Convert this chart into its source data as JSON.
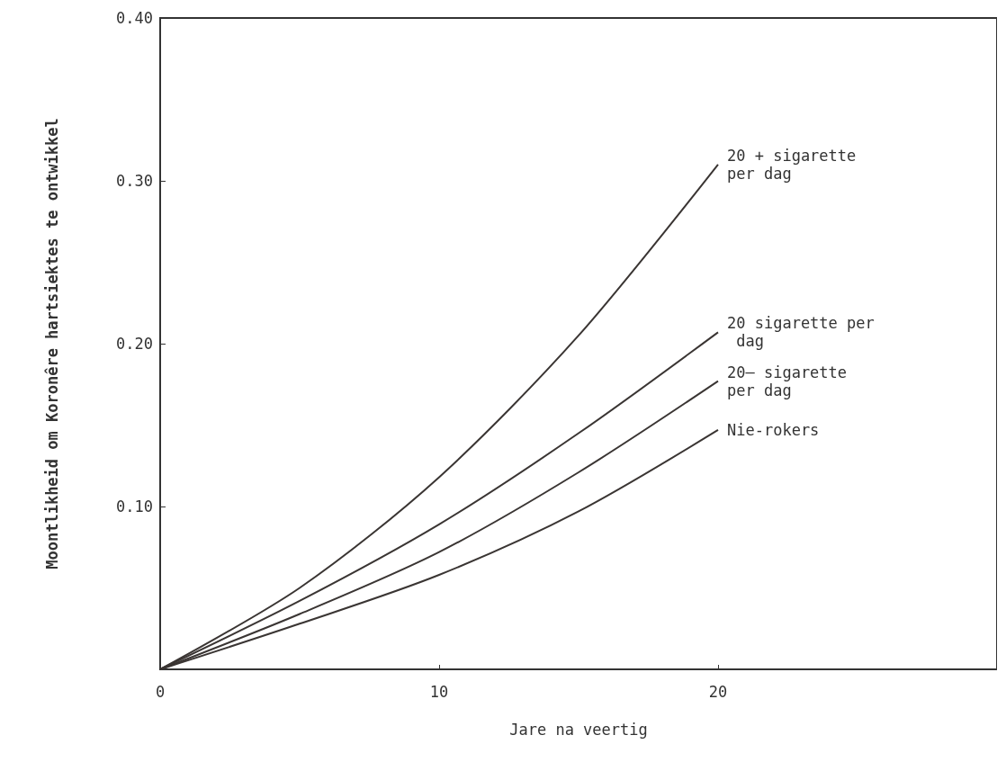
{
  "chart_data": {
    "type": "line",
    "xlabel": "Jare na veertig",
    "ylabel": "Moontlikheid om Koronêre hartsiektes te ontwikkel",
    "x": [
      0,
      5,
      10,
      15,
      20
    ],
    "series": [
      {
        "name": "20 + sigarette per dag",
        "color": "#3a3533",
        "values": [
          0,
          0.05,
          0.118,
          0.205,
          0.31
        ]
      },
      {
        "name": "20 sigarette per dag",
        "color": "#3a3533",
        "values": [
          0,
          0.042,
          0.089,
          0.145,
          0.207
        ]
      },
      {
        "name": "20– sigarette per dag",
        "color": "#3a3533",
        "values": [
          0,
          0.034,
          0.072,
          0.121,
          0.177
        ]
      },
      {
        "name": "Nie-rokers",
        "color": "#3a3533",
        "values": [
          0,
          0.028,
          0.058,
          0.097,
          0.147
        ]
      }
    ],
    "xlim": [
      0,
      30
    ],
    "xticks": [
      0,
      10,
      20
    ],
    "ylim": [
      0,
      0.4
    ],
    "yticks": [
      {
        "value": 0.1,
        "label": "0.10"
      },
      {
        "value": 0.2,
        "label": "0.20"
      },
      {
        "value": 0.3,
        "label": "0.30"
      },
      {
        "value": 0.4,
        "label": "0.40"
      }
    ],
    "grid": false,
    "legend": false,
    "line_style": "solid"
  }
}
